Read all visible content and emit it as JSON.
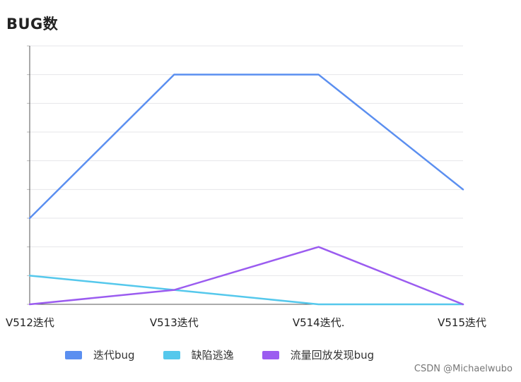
{
  "title": "BUG数",
  "watermark": "CSDN @Michaelwubo",
  "colors": {
    "series_1": "#5b8ff0",
    "series_2": "#55c8ec",
    "series_3": "#9b5cf0",
    "grid": "#e6e6ea",
    "axis": "#555555"
  },
  "chart_data": {
    "type": "line",
    "categories": [
      "V512迭代",
      "V513迭代",
      "V514迭代.",
      "V515迭代"
    ],
    "series": [
      {
        "name": "迭代bug",
        "values": [
          3,
          8,
          8,
          4
        ]
      },
      {
        "name": "缺陷逃逸",
        "values": [
          1,
          0.5,
          0,
          0
        ]
      },
      {
        "name": "流量回放发现bug",
        "values": [
          0,
          0.5,
          2,
          0
        ]
      }
    ],
    "ylim": [
      0,
      9
    ],
    "yticks_visible": false,
    "grid": true,
    "legend": "bottom",
    "title": "BUG数",
    "xlabel": "",
    "ylabel": ""
  }
}
